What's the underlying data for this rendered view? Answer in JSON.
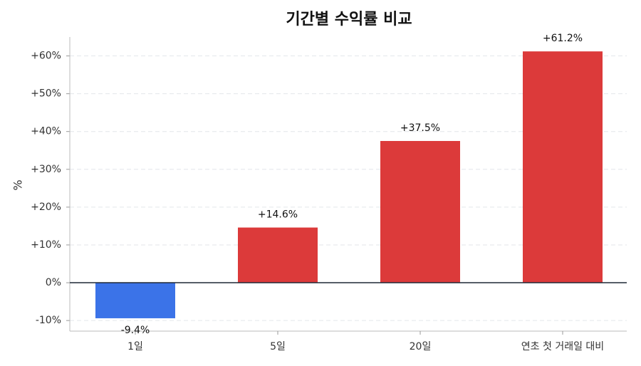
{
  "chart_data": {
    "type": "bar",
    "title": "기간별 수익률 비교",
    "y_label": "%",
    "categories": [
      "1일",
      "5일",
      "20일",
      "연초 첫 거래일 대비"
    ],
    "values": [
      -9.4,
      14.6,
      37.5,
      61.2
    ],
    "value_labels": [
      "-9.4%",
      "+14.6%",
      "+37.5%",
      "+61.2%"
    ],
    "colors": [
      "#3b73e8",
      "#dc3a3a",
      "#dc3a3a",
      "#dc3a3a"
    ],
    "ylim": [
      -12.8,
      65
    ],
    "yticks": [
      {
        "value": -10,
        "label": "-10%"
      },
      {
        "value": 0,
        "label": "0%"
      },
      {
        "value": 10,
        "label": "+10%"
      },
      {
        "value": 20,
        "label": "+20%"
      },
      {
        "value": 30,
        "label": "+30%"
      },
      {
        "value": 40,
        "label": "+40%"
      },
      {
        "value": 50,
        "label": "+50%"
      },
      {
        "value": 60,
        "label": "+60%"
      }
    ],
    "grid": true
  }
}
